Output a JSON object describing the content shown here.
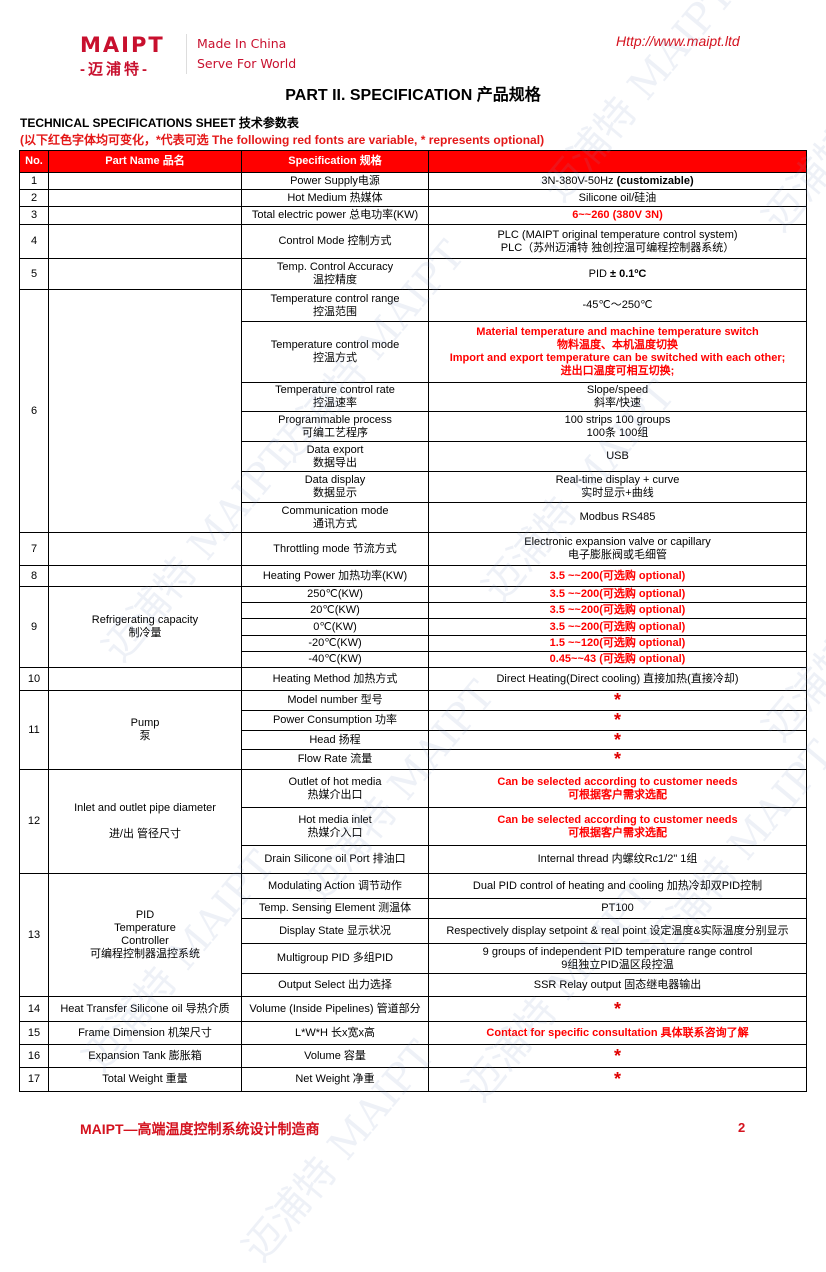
{
  "header": {
    "logo_text": "MAIPT",
    "logo_cn": "-迈浦特-",
    "slogan_1": "Made In China",
    "slogan_2": "Serve For World",
    "url": "Http://www.maipt.ltd"
  },
  "title": "PART II. SPECIFICATION 产品规格",
  "sheet_title": "TECHNICAL SPECIFICATIONS SHEET 技术参数表",
  "note": "(以下红色字体均可变化，*代表可选  The following red fonts are variable, * represents optional)",
  "colors": {
    "accent": "#ff0000",
    "brand": "#c8102e"
  },
  "table": {
    "headers": [
      "No.",
      "Part Name 品名",
      "Specification 规格",
      ""
    ],
    "groups": [
      {
        "no": "1",
        "part": "",
        "items": [
          {
            "spec": "Power Supply电源",
            "value": "3N-380V-50Hz ",
            "value_bold": "(customizable)"
          }
        ]
      },
      {
        "no": "2",
        "part": "",
        "items": [
          {
            "spec": "Hot Medium 热媒体",
            "value": "Silicone oil/硅油"
          }
        ]
      },
      {
        "no": "3",
        "part": "",
        "items": [
          {
            "spec": "Total electric power 总电功率(KW)",
            "value": "6~~260  (380V 3N)",
            "red": true
          }
        ]
      },
      {
        "no": "4",
        "part": "",
        "items": [
          {
            "spec": "Control Mode 控制方式",
            "value": "PLC (MAIPT original temperature control system)\nPLC（苏州迈浦特 独创控温可编程控制器系统）"
          }
        ]
      },
      {
        "no": "5",
        "part": "",
        "items": [
          {
            "spec": "Temp. Control Accuracy\n温控精度",
            "value": "PID ",
            "value_bold": "± 0.1ºC"
          }
        ]
      },
      {
        "no": "6",
        "part": "",
        "items": [
          {
            "spec": "Temperature control range\n控温范围",
            "value": "-45℃～250℃"
          },
          {
            "spec": "Temperature control mode\n控温方式",
            "value": "Material temperature and machine temperature switch\n物料温度、本机温度切换\nImport and export temperature can be switched with each other;\n进出口温度可相互切换;",
            "red": true
          },
          {
            "spec": "Temperature control rate\n控温速率",
            "value": "Slope/speed\n斜率/快速"
          },
          {
            "spec": "Programmable process\n可编工艺程序",
            "value": "100 strips 100 groups\n100条 100组"
          },
          {
            "spec": "Data export\n数据导出",
            "value": "USB"
          },
          {
            "spec": "Data display\n数据显示",
            "value": "Real-time display + curve\n实时显示+曲线"
          },
          {
            "spec": "Communication mode\n通讯方式",
            "value": "Modbus RS485"
          }
        ]
      },
      {
        "no": "7",
        "part": "",
        "items": [
          {
            "spec": "Throttling mode 节流方式",
            "value": "Electronic expansion valve or capillary\n电子膨胀阀或毛细管"
          }
        ]
      },
      {
        "no": "8",
        "part": "",
        "items": [
          {
            "spec": "Heating Power 加热功率(KW)",
            "value": "3.5 ~~200(可选购 optional)",
            "red": true
          }
        ]
      },
      {
        "no": "9",
        "part": "Refrigerating capacity\n制冷量",
        "items": [
          {
            "spec": "250℃(KW)",
            "value": "3.5 ~~200(可选购 optional)",
            "red": true
          },
          {
            "spec": "20℃(KW)",
            "value": "3.5 ~~200(可选购 optional)",
            "red": true
          },
          {
            "spec": "0℃(KW)",
            "value": "3.5 ~~200(可选购 optional)",
            "red": true
          },
          {
            "spec": "-20℃(KW)",
            "value": "1.5 ~~120(可选购 optional)",
            "red": true
          },
          {
            "spec": "-40℃(KW)",
            "value": "0.45~~43 (可选购 optional)",
            "red": true
          }
        ]
      },
      {
        "no": "10",
        "part": "",
        "items": [
          {
            "spec": "Heating Method 加热方式",
            "value": "Direct Heating(Direct cooling) 直接加热(直接冷却)"
          }
        ]
      },
      {
        "no": "11",
        "part": "Pump\n泵",
        "items": [
          {
            "spec": "Model number 型号",
            "value": "*",
            "star": true
          },
          {
            "spec": "Power Consumption 功率",
            "value": "*",
            "star": true
          },
          {
            "spec": "Head 扬程",
            "value": "*",
            "star": true
          },
          {
            "spec": "Flow Rate 流量",
            "value": "*",
            "star": true
          }
        ]
      },
      {
        "no": "12",
        "part": "Inlet and outlet pipe diameter\n\n进/出 管径尺寸",
        "items": [
          {
            "spec": "Outlet of hot media\n热媒介出口",
            "value": "Can be selected according to customer needs\n可根据客户需求选配",
            "red": true
          },
          {
            "spec": "Hot media inlet\n热媒介入口",
            "value": "Can be selected according to customer needs\n可根据客户需求选配",
            "red": true
          },
          {
            "spec": "Drain Silicone oil Port 排油口",
            "value": "Internal thread 内螺纹Rc1/2\"       1组"
          }
        ]
      },
      {
        "no": "13",
        "part": "PID\nTemperature\nController\n可编程控制器温控系统",
        "items": [
          {
            "spec": "Modulating Action 调节动作",
            "value": "Dual PID control of heating and cooling 加热冷却双PID控制"
          },
          {
            "spec": "Temp. Sensing Element 测温体",
            "value": "PT100"
          },
          {
            "spec": "Display State 显示状况",
            "value": "Respectively display setpoint & real point 设定温度&实际温度分别显示"
          },
          {
            "spec": "Multigroup PID 多组PID",
            "value": "9 groups of independent PID temperature range control\n9组独立PID温区段控温"
          },
          {
            "spec": "Output Select 出力选择",
            "value": "SSR Relay output  固态继电器输出"
          }
        ]
      },
      {
        "no": "14",
        "part": "Heat Transfer Silicone oil 导热介质",
        "items": [
          {
            "spec": "Volume (Inside Pipelines) 管道部分",
            "value": "*",
            "star": true
          }
        ]
      },
      {
        "no": "15",
        "part": "Frame Dimension 机架尺寸",
        "items": [
          {
            "spec": "L*W*H 长x宽x高",
            "value": "Contact for specific consultation   具体联系咨询了解",
            "red": true
          }
        ]
      },
      {
        "no": "16",
        "part": "Expansion Tank 膨胀箱",
        "items": [
          {
            "spec": "Volume 容量",
            "value": "*",
            "star": true
          }
        ]
      },
      {
        "no": "17",
        "part": "Total Weight 重量",
        "items": [
          {
            "spec": "Net Weight 净重",
            "value": "*",
            "star": true
          }
        ]
      }
    ]
  },
  "footer": {
    "text": "MAIPT—高端温度控制系统设计制造商",
    "page": "2"
  },
  "watermark": "迈浦特 MAIPT"
}
